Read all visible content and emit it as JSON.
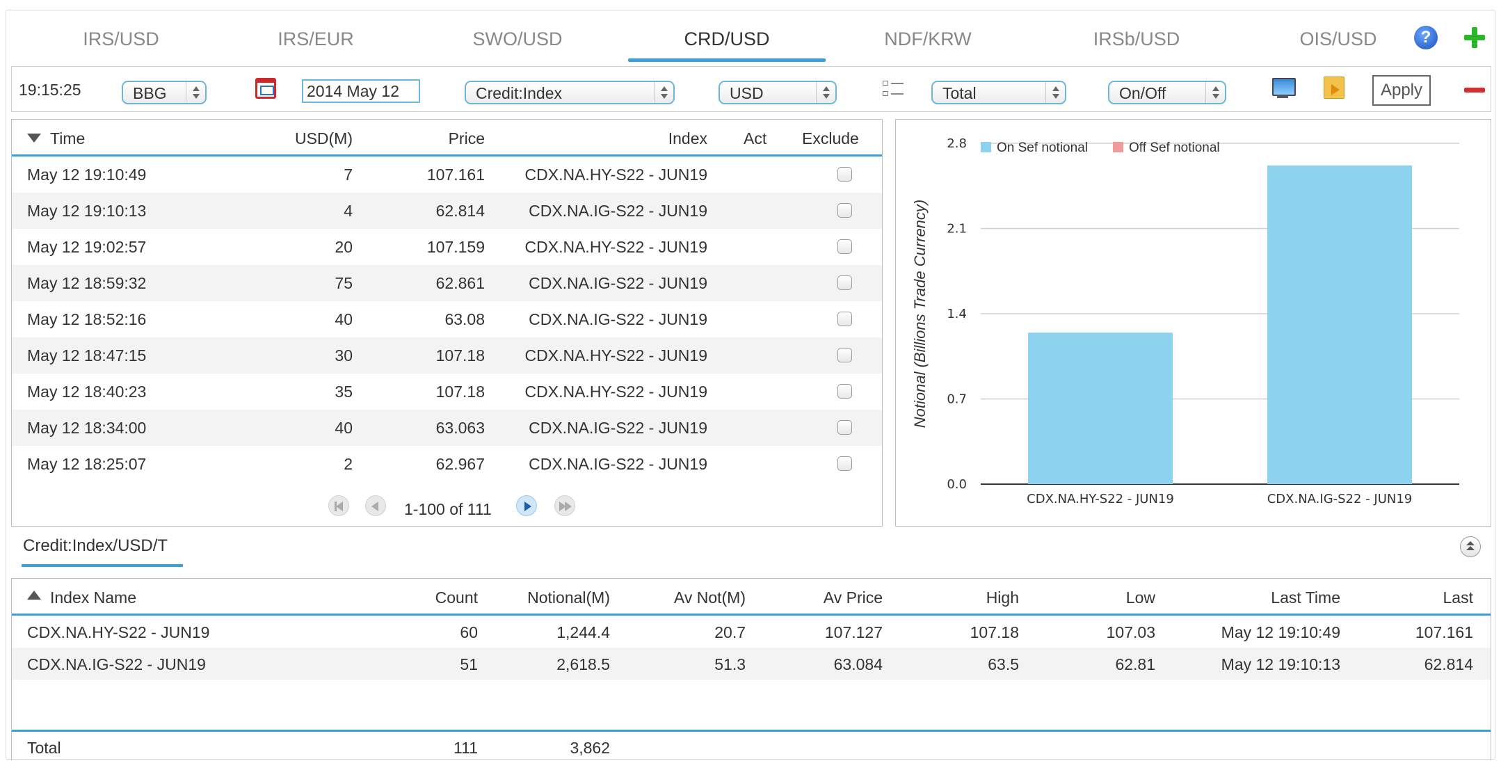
{
  "tabs": [
    {
      "label": "IRS/USD",
      "active": false
    },
    {
      "label": "IRS/EUR",
      "active": false
    },
    {
      "label": "SWO/USD",
      "active": false
    },
    {
      "label": "CRD/USD",
      "active": true
    },
    {
      "label": "NDF/KRW",
      "active": false
    },
    {
      "label": "IRSb/USD",
      "active": false
    },
    {
      "label": "OIS/USD",
      "active": false
    }
  ],
  "toolbar": {
    "clock": "19:15:25",
    "source": "BBG",
    "date": "2014 May 12",
    "asset_class": "Credit:Index",
    "currency": "USD",
    "view": "Total",
    "sef_filter": "On/Off",
    "apply_label": "Apply",
    "help_glyph": "?"
  },
  "trades": {
    "columns": [
      "Time",
      "USD(M)",
      "Price",
      "Index",
      "Act",
      "Exclude"
    ],
    "rows": [
      {
        "time": "May 12 19:10:49",
        "usd": "7",
        "price": "107.161",
        "index": "CDX.NA.HY-S22 - JUN19",
        "act": ""
      },
      {
        "time": "May 12 19:10:13",
        "usd": "4",
        "price": "62.814",
        "index": "CDX.NA.IG-S22 - JUN19",
        "act": ""
      },
      {
        "time": "May 12 19:02:57",
        "usd": "20",
        "price": "107.159",
        "index": "CDX.NA.HY-S22 - JUN19",
        "act": ""
      },
      {
        "time": "May 12 18:59:32",
        "usd": "75",
        "price": "62.861",
        "index": "CDX.NA.IG-S22 - JUN19",
        "act": ""
      },
      {
        "time": "May 12 18:52:16",
        "usd": "40",
        "price": "63.08",
        "index": "CDX.NA.IG-S22 - JUN19",
        "act": ""
      },
      {
        "time": "May 12 18:47:15",
        "usd": "30",
        "price": "107.18",
        "index": "CDX.NA.HY-S22 - JUN19",
        "act": ""
      },
      {
        "time": "May 12 18:40:23",
        "usd": "35",
        "price": "107.18",
        "index": "CDX.NA.HY-S22 - JUN19",
        "act": ""
      },
      {
        "time": "May 12 18:34:00",
        "usd": "40",
        "price": "63.063",
        "index": "CDX.NA.IG-S22 - JUN19",
        "act": ""
      },
      {
        "time": "May 12 18:25:07",
        "usd": "2",
        "price": "62.967",
        "index": "CDX.NA.IG-S22 - JUN19",
        "act": ""
      }
    ],
    "pager": "1-100 of 111"
  },
  "chart_data": {
    "type": "bar",
    "categories": [
      "CDX.NA.HY-S22 - JUN19",
      "CDX.NA.IG-S22 - JUN19"
    ],
    "series": [
      {
        "name": "On Sef notional",
        "color": "#8dd3ef",
        "values": [
          1.2444,
          2.6185
        ]
      },
      {
        "name": "Off Sef notional",
        "color": "#f19a9a",
        "values": [
          0,
          0
        ]
      }
    ],
    "ylabel": "Notional (Billions Trade Currency)",
    "ylim": [
      0,
      2.8
    ],
    "yticks": [
      "0.0",
      "0.7",
      "1.4",
      "2.1",
      "2.8"
    ],
    "grid": true,
    "legend_position": "top-left"
  },
  "summary": {
    "tab_label": "Credit:Index/USD/T",
    "columns": [
      "Index Name",
      "Count",
      "Notional(M)",
      "Av Not(M)",
      "Av Price",
      "High",
      "Low",
      "Last Time",
      "Last"
    ],
    "rows": [
      {
        "name": "CDX.NA.HY-S22 - JUN19",
        "count": "60",
        "notional": "1,244.4",
        "av_not": "20.7",
        "av_price": "107.127",
        "high": "107.18",
        "low": "107.03",
        "last_time": "May 12 19:10:49",
        "last": "107.161"
      },
      {
        "name": "CDX.NA.IG-S22 - JUN19",
        "count": "51",
        "notional": "2,618.5",
        "av_not": "51.3",
        "av_price": "63.084",
        "high": "63.5",
        "low": "62.81",
        "last_time": "May 12 19:10:13",
        "last": "62.814"
      }
    ],
    "total": {
      "label": "Total",
      "count": "111",
      "notional": "3,862"
    }
  }
}
